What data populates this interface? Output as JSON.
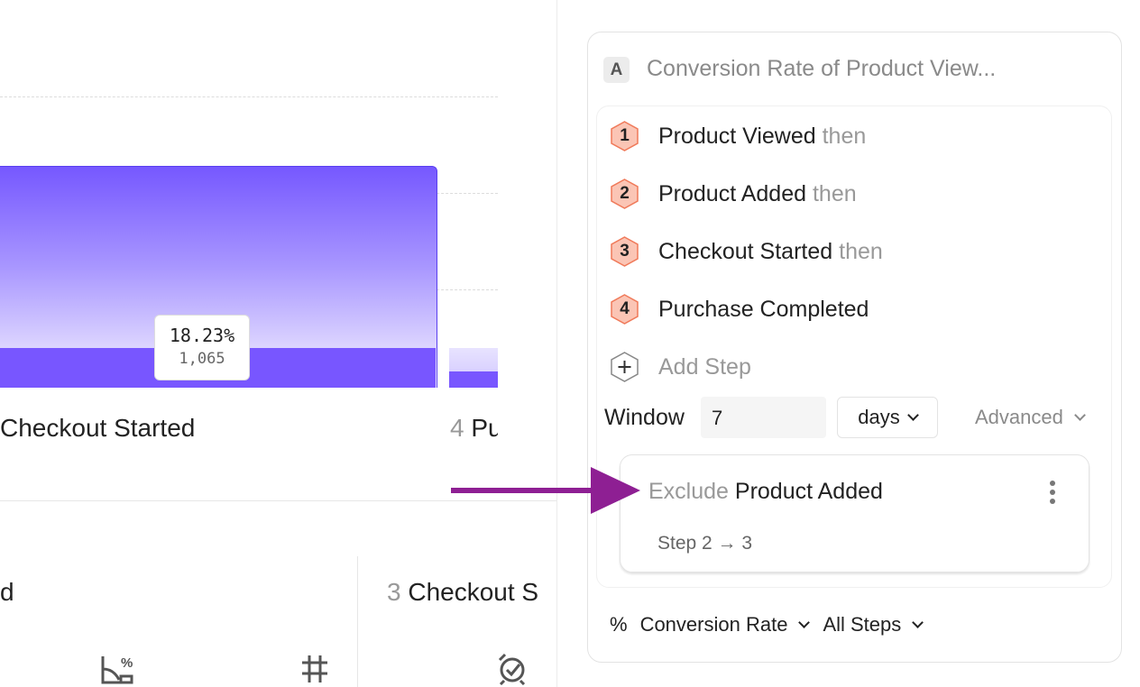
{
  "chart": {
    "bar_label": "Checkout Started",
    "next_step_number": "4",
    "next_step_label": "Pu",
    "tooltip_percent": "18.23%",
    "tooltip_count": "1,065",
    "bar_color": "#7856ff"
  },
  "bottom": {
    "left_fragment": "d",
    "step_number": "3",
    "step_label": "Checkout S",
    "icons": [
      "conversion-chart-icon",
      "hash-icon",
      "alarm-check-icon"
    ]
  },
  "panel": {
    "badge": "A",
    "title": "Conversion Rate of Product View...",
    "steps": [
      {
        "number": "1",
        "name": "Product Viewed",
        "suffix": "then"
      },
      {
        "number": "2",
        "name": "Product Added",
        "suffix": "then"
      },
      {
        "number": "3",
        "name": "Checkout Started",
        "suffix": "then"
      },
      {
        "number": "4",
        "name": "Purchase Completed",
        "suffix": ""
      }
    ],
    "add_step": "Add Step",
    "window_label": "Window",
    "window_value": "7",
    "window_unit": "days",
    "advanced": "Advanced",
    "exclusion": {
      "prefix": "Exclude",
      "event": "Product Added",
      "range": "Step 2 → 3"
    },
    "metric_symbol": "%",
    "metric": "Conversion Rate",
    "steps_scope": "All Steps",
    "accent_hex": "#fbc5b5",
    "arrow_color": "#8e1f93"
  }
}
